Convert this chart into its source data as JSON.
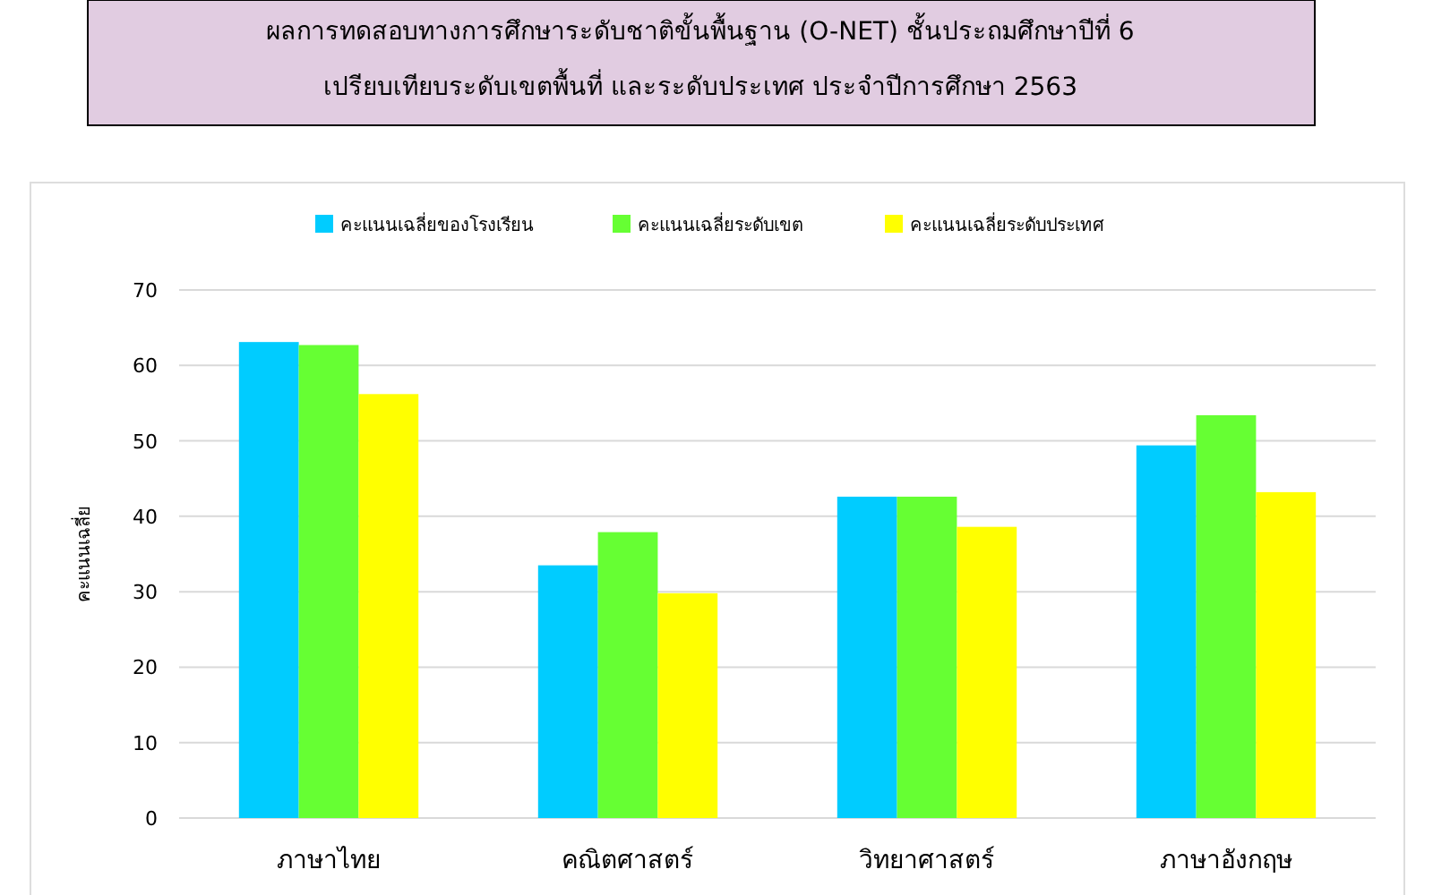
{
  "chart_data": {
    "type": "bar",
    "title": "ผลการทดสอบทางการศึกษาระดับชาติขั้นพื้นฐาน (O-NET) ชั้นประถมศึกษาปีที่ 6",
    "subtitle": "เปรียบเทียบระดับเขตพื้นที่ และระดับประเทศ ประจำปีการศึกษา  2563",
    "ylabel": "คะแนนเฉลี่ย",
    "categories": [
      "ภาษาไทย",
      "คณิตศาสตร์",
      "วิทยาศาสตร์",
      "ภาษาอังกฤษ"
    ],
    "series": [
      {
        "name": "คะแนนเฉลี่ยของโรงเรียน",
        "color": "#00ccff",
        "values": [
          63.1,
          33.5,
          42.6,
          49.4
        ]
      },
      {
        "name": "คะแนนเฉลี่ยระดับเขต",
        "color": "#66ff33",
        "values": [
          62.7,
          37.9,
          42.6,
          53.4
        ]
      },
      {
        "name": "คะแนนเฉลี่ยระดับประเทศ",
        "color": "#ffff00",
        "values": [
          56.2,
          29.8,
          38.6,
          43.2
        ]
      }
    ],
    "ylim": [
      0,
      70
    ],
    "yticks": [
      0,
      10,
      20,
      30,
      40,
      50,
      60,
      70
    ],
    "grid": "y",
    "legend": "top"
  }
}
